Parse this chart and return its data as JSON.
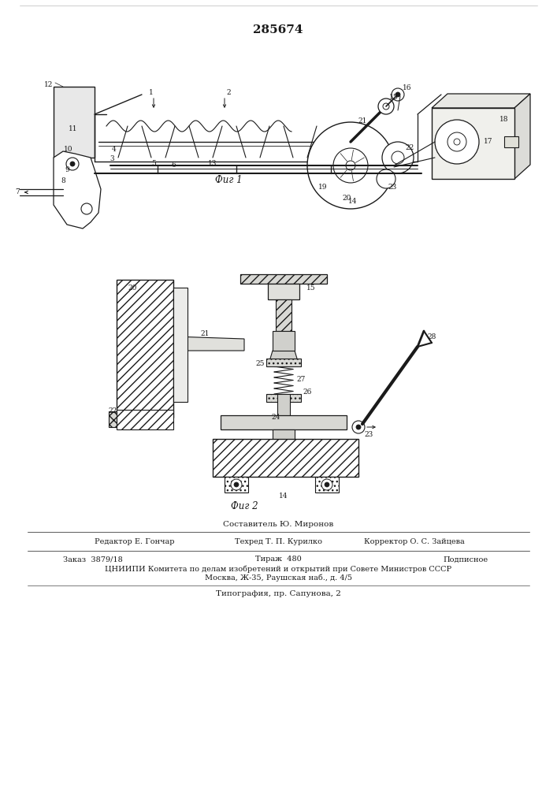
{
  "patent_number": "285674",
  "fig1_caption": "Фиг 1",
  "fig2_caption": "Фиг 2",
  "footer_composit": "Составитель Ю. Миронов",
  "footer_editor": "Редактор Е. Гончар",
  "footer_techred": "Техред Т. П. Курилко",
  "footer_corrector": "Корректор О. С. Зайцева",
  "footer_zakaz": "Заказ  3879/18",
  "footer_tirazh": "Тираж  480",
  "footer_podpisnoe": "Подписное",
  "footer_tsniipi": "ЦНИИПИ Комитета по делам изобретений и открытий при Совете Министров СССР",
  "footer_moscow": "Москва, Ж-35, Раушская наб., д. 4/5",
  "footer_tipograf": "Типография, пр. Сапунова, 2",
  "bg_color": "#ffffff",
  "lc": "#1a1a1a"
}
